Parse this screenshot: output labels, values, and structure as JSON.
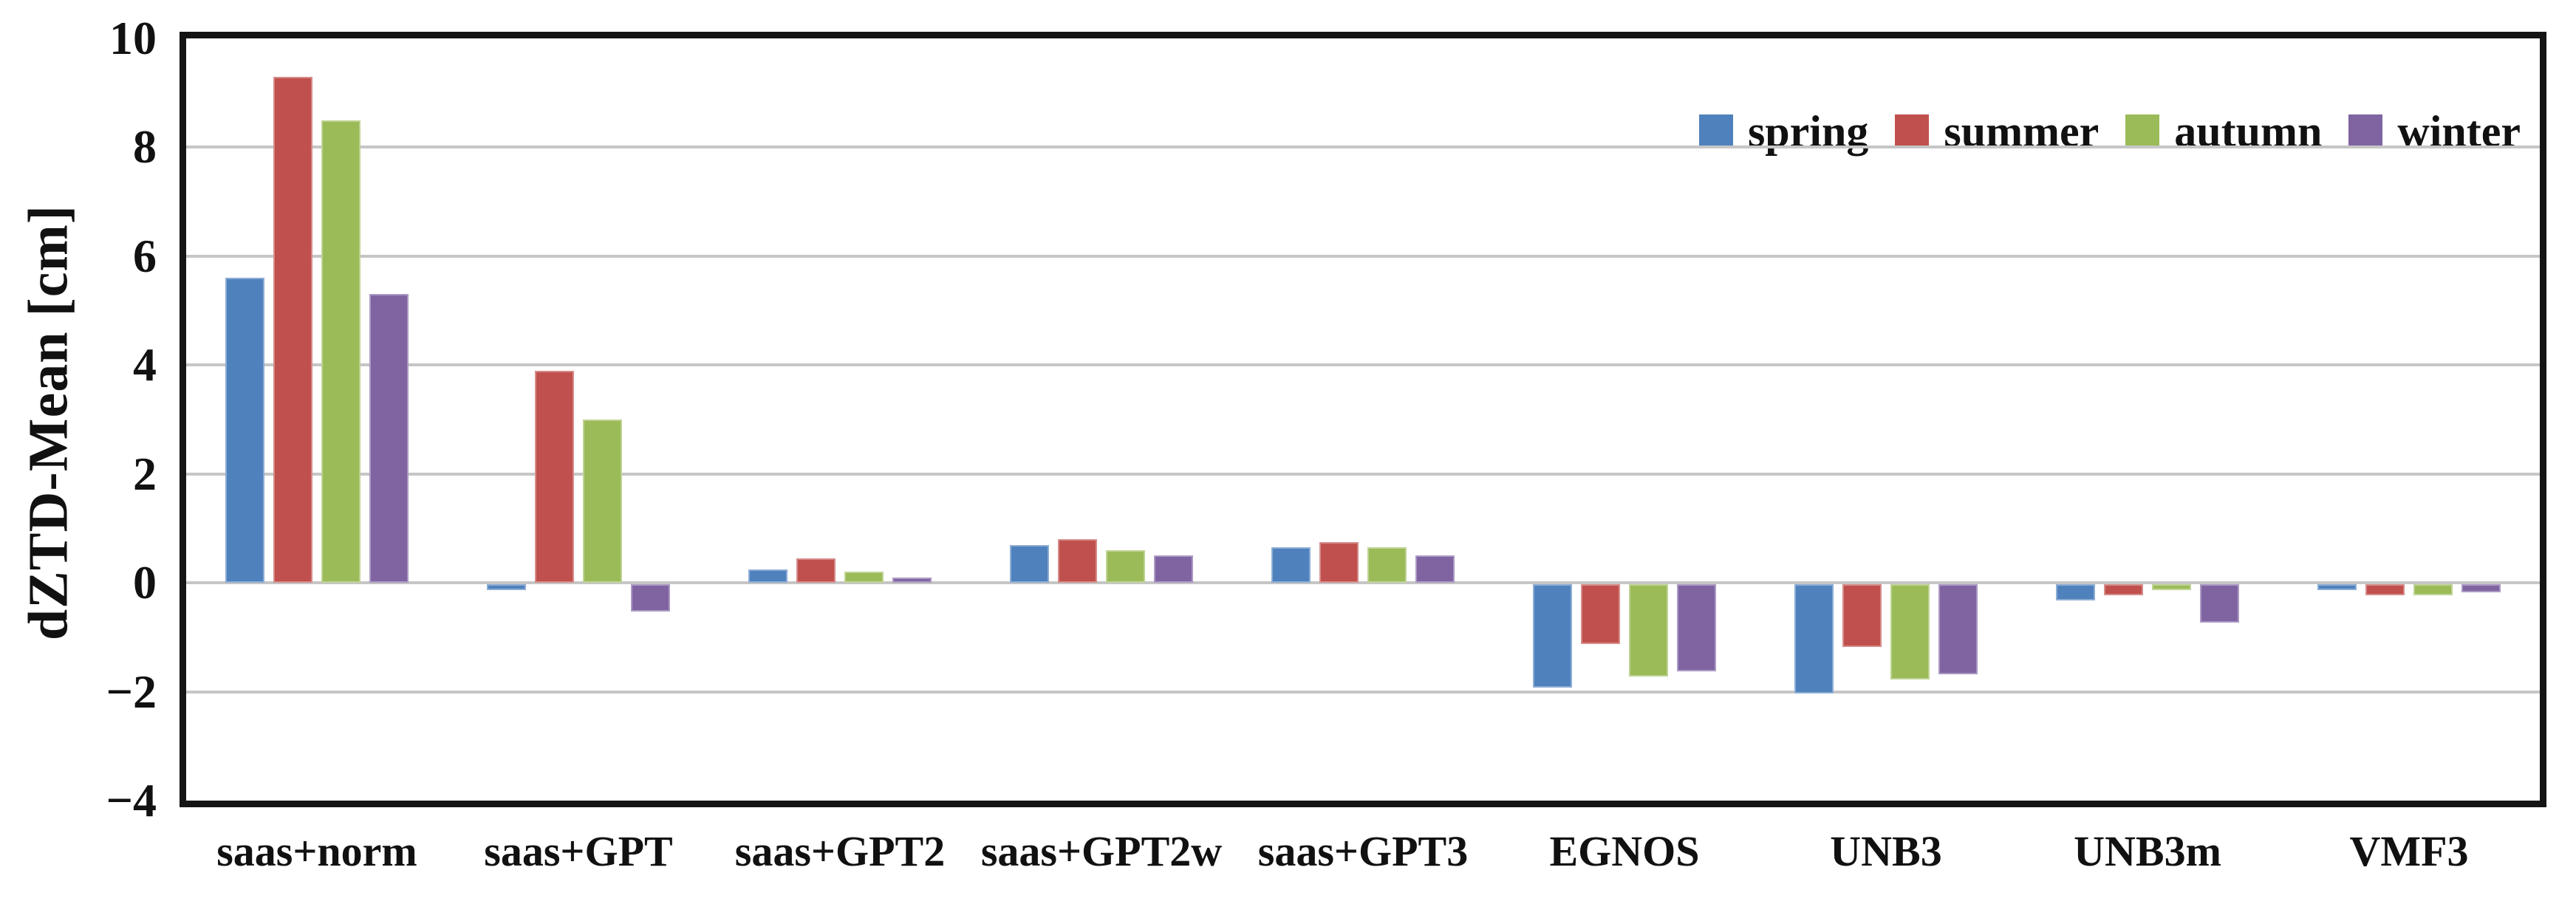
{
  "figure": {
    "background": "#ffffff",
    "frame_color": "#141414",
    "gridline_color": "#c6c6c6"
  },
  "chart_data": {
    "type": "bar",
    "title": "",
    "xlabel": "",
    "ylabel": "dZTD-Mean [cm]",
    "categories": [
      "saas+norm",
      "saas+GPT",
      "saas+GPT2",
      "saas+GPT2w",
      "saas+GPT3",
      "EGNOS",
      "UNB3",
      "UNB3m",
      "VMF3"
    ],
    "series": [
      {
        "name": "spring",
        "color": "#4f81bd",
        "values": [
          5.6,
          -0.1,
          0.25,
          0.7,
          0.65,
          -1.9,
          -2.0,
          -0.3,
          -0.1
        ]
      },
      {
        "name": "summer",
        "color": "#c0504d",
        "values": [
          9.3,
          3.9,
          0.45,
          0.8,
          0.75,
          -1.1,
          -1.15,
          -0.2,
          -0.2
        ]
      },
      {
        "name": "autumn",
        "color": "#9bbb59",
        "values": [
          8.5,
          3.0,
          0.2,
          0.6,
          0.65,
          -1.7,
          -1.75,
          -0.1,
          -0.2
        ]
      },
      {
        "name": "winter",
        "color": "#8064a2",
        "values": [
          5.3,
          -0.5,
          0.1,
          0.5,
          0.5,
          -1.6,
          -1.65,
          -0.7,
          -0.15
        ]
      }
    ],
    "ylim": [
      -4,
      10
    ],
    "yticks": [
      {
        "value": 10,
        "label": "10"
      },
      {
        "value": 8,
        "label": "8"
      },
      {
        "value": 6,
        "label": "6"
      },
      {
        "value": 4,
        "label": "4"
      },
      {
        "value": 2,
        "label": "2"
      },
      {
        "value": 0,
        "label": "0"
      },
      {
        "value": -2,
        "label": "−2"
      },
      {
        "value": -4,
        "label": "−4"
      }
    ],
    "gridline_values": [
      8,
      6,
      4,
      2,
      0,
      -2
    ],
    "grid": true,
    "legend_position": "top-right"
  }
}
